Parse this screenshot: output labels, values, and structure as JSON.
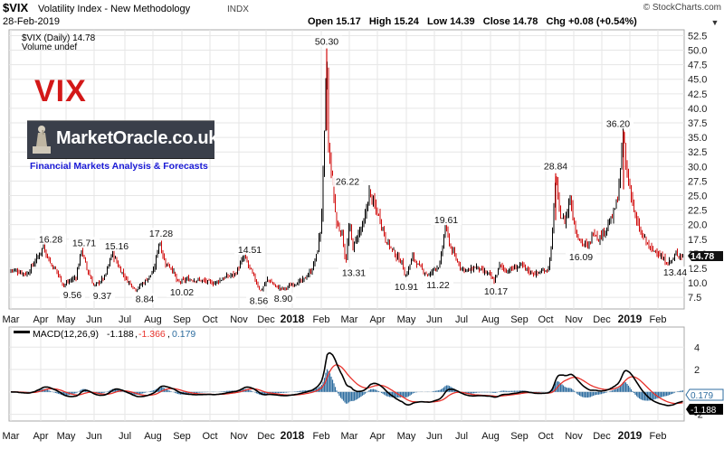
{
  "header": {
    "symbol": "$VIX",
    "name": "Volatility Index - New Methodology",
    "exchange": "INDX",
    "date": "28-Feb-2019",
    "ohlc": "Open 15.17   High 15.24   Low 14.39   Close 14.78   Chg +0.08 (+0.54%)",
    "credit": "© StockCharts.com",
    "arrow": "▼"
  },
  "legend": {
    "main": "$VIX (Daily) 14.78",
    "volume": "Volume undef",
    "macd_label": "MACD(12,26,9)",
    "macd_value": "-1.188",
    "signal_value": "-1.366",
    "hist_value": "0.179"
  },
  "overlay": {
    "vix_title": "VIX",
    "logo_text": "MarketOracle.co.uk",
    "logo_tagline": "Financial Markets Analysis & Forecasts"
  },
  "colors": {
    "up": "#000000",
    "down": "#d10a0a",
    "macd": "#000000",
    "signal": "#e8332c",
    "histogram": "#2f6ea0",
    "grid": "#e6e6e6",
    "price_tag": "#111111",
    "macd_tag": "#000000",
    "hist_tag": "#2f6ea0"
  },
  "chart_data": [
    {
      "type": "line",
      "title": "$VIX (Daily)",
      "x_axis_labels": [
        "Mar",
        "Apr",
        "May",
        "Jun",
        "Jul",
        "Aug",
        "Sep",
        "Oct",
        "Nov",
        "Dec",
        "2018",
        "Feb",
        "Mar",
        "Apr",
        "May",
        "Jun",
        "Jul",
        "Aug",
        "Sep",
        "Oct",
        "Nov",
        "Dec",
        "2019",
        "Feb"
      ],
      "y_ticks": [
        7.5,
        10.0,
        12.5,
        15.0,
        17.5,
        20.0,
        22.5,
        25.0,
        27.5,
        30.0,
        32.5,
        35.0,
        37.5,
        40.0,
        42.5,
        45.0,
        47.5,
        50.0,
        52.5
      ],
      "ylim": [
        5.5,
        53.5
      ],
      "last_value": "14.78",
      "anchors": [
        [
          0,
          11.8
        ],
        [
          8,
          12.5
        ],
        [
          18,
          12.0
        ],
        [
          30,
          11.5
        ],
        [
          42,
          14.5
        ],
        [
          48,
          16.28
        ],
        [
          56,
          13.2
        ],
        [
          62,
          12.2
        ],
        [
          70,
          9.56
        ],
        [
          84,
          11.0
        ],
        [
          90,
          15.71
        ],
        [
          96,
          12.4
        ],
        [
          104,
          9.37
        ],
        [
          116,
          11.0
        ],
        [
          124,
          15.16
        ],
        [
          132,
          12.5
        ],
        [
          140,
          10.5
        ],
        [
          150,
          8.84
        ],
        [
          160,
          10.2
        ],
        [
          170,
          12.0
        ],
        [
          176,
          17.28
        ],
        [
          182,
          13.5
        ],
        [
          190,
          12.5
        ],
        [
          196,
          10.02
        ],
        [
          208,
          10.6
        ],
        [
          222,
          10.4
        ],
        [
          236,
          9.9
        ],
        [
          250,
          11.0
        ],
        [
          260,
          11.5
        ],
        [
          270,
          14.51
        ],
        [
          278,
          11.8
        ],
        [
          288,
          8.56
        ],
        [
          296,
          10.6
        ],
        [
          306,
          9.2
        ],
        [
          314,
          8.9
        ],
        [
          324,
          9.8
        ],
        [
          334,
          10.3
        ],
        [
          344,
          12.0
        ],
        [
          350,
          14.8
        ],
        [
          355,
          20.0
        ],
        [
          359,
          37.3
        ],
        [
          361,
          50.3
        ],
        [
          363,
          33.0
        ],
        [
          368,
          26.22
        ],
        [
          372,
          20.0
        ],
        [
          378,
          18.5
        ],
        [
          382,
          13.31
        ],
        [
          386,
          20.0
        ],
        [
          390,
          16.0
        ],
        [
          396,
          18.5
        ],
        [
          402,
          20.0
        ],
        [
          408,
          25.5
        ],
        [
          414,
          23.0
        ],
        [
          420,
          21.0
        ],
        [
          426,
          17.5
        ],
        [
          432,
          16.0
        ],
        [
          438,
          14.5
        ],
        [
          444,
          13.5
        ],
        [
          448,
          10.91
        ],
        [
          456,
          14.5
        ],
        [
          462,
          13.0
        ],
        [
          468,
          12.0
        ],
        [
          474,
          11.22
        ],
        [
          480,
          12.5
        ],
        [
          486,
          13.0
        ],
        [
          492,
          19.61
        ],
        [
          498,
          16.0
        ],
        [
          504,
          14.0
        ],
        [
          510,
          12.5
        ],
        [
          518,
          12.0
        ],
        [
          526,
          12.8
        ],
        [
          532,
          12.0
        ],
        [
          540,
          11.5
        ],
        [
          546,
          10.17
        ],
        [
          552,
          13.0
        ],
        [
          560,
          12.0
        ],
        [
          568,
          12.5
        ],
        [
          576,
          13.0
        ],
        [
          584,
          12.0
        ],
        [
          592,
          11.5
        ],
        [
          600,
          12.0
        ],
        [
          606,
          12.5
        ],
        [
          610,
          17.0
        ],
        [
          614,
          28.84
        ],
        [
          618,
          22.0
        ],
        [
          624,
          20.5
        ],
        [
          630,
          24.5
        ],
        [
          636,
          19.0
        ],
        [
          642,
          17.0
        ],
        [
          650,
          16.09
        ],
        [
          656,
          19.0
        ],
        [
          662,
          17.5
        ],
        [
          670,
          19.5
        ],
        [
          676,
          21.0
        ],
        [
          682,
          24.0
        ],
        [
          686,
          30.0
        ],
        [
          689,
          36.2
        ],
        [
          692,
          29.0
        ],
        [
          698,
          25.0
        ],
        [
          702,
          21.0
        ],
        [
          708,
          18.5
        ],
        [
          714,
          17.0
        ],
        [
          720,
          15.5
        ],
        [
          726,
          15.5
        ],
        [
          732,
          14.0
        ],
        [
          738,
          13.44
        ],
        [
          744,
          14.0
        ],
        [
          748,
          15.2
        ],
        [
          752,
          14.5
        ],
        [
          755,
          14.78
        ]
      ]
    },
    {
      "type": "line",
      "title": "MACD(12,26,9)",
      "series": [
        {
          "name": "MACD(12,26,9)",
          "last": -1.188
        },
        {
          "name": "Signal",
          "last": -1.366
        },
        {
          "name": "Histogram",
          "last": 0.179
        }
      ],
      "y_ticks": [
        4,
        2,
        -2
      ],
      "ylim": [
        -2.6,
        5.8
      ]
    }
  ]
}
